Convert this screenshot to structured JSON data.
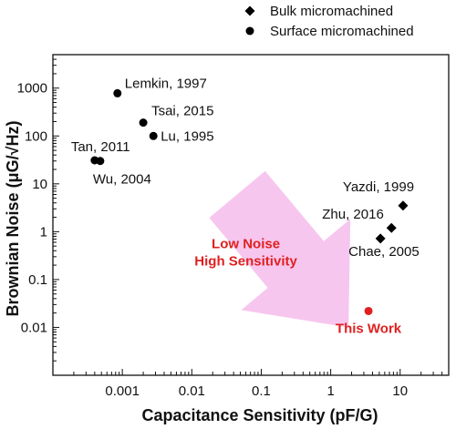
{
  "chart_data": {
    "type": "scatter",
    "title": "",
    "xlabel": "Capacitance Sensitivity  (pF/G)",
    "ylabel": "Brownian Noise (μG/√Hz)",
    "x_scale": "log",
    "y_scale": "log",
    "xlim": [
      0.0001,
      50
    ],
    "ylim": [
      0.001,
      5000
    ],
    "x_ticks": [
      "0.001",
      "0.01",
      "0.1",
      "1",
      "10"
    ],
    "x_tick_values": [
      0.001,
      0.01,
      0.1,
      1,
      10
    ],
    "y_ticks": [
      "1000",
      "100",
      "10",
      "1",
      "0.1",
      "0.01"
    ],
    "y_tick_values": [
      1000,
      100,
      10,
      1,
      0.1,
      0.01
    ],
    "grid": false,
    "legend_position": "top-right",
    "series": [
      {
        "name": "Bulk micromachined",
        "marker": "diamond",
        "color": "#000000",
        "points": [
          {
            "label": "Yazdi, 1999",
            "x": 11,
            "y": 3.5
          },
          {
            "label": "Zhu, 2016",
            "x": 7.5,
            "y": 1.2
          },
          {
            "label": "Chae, 2005",
            "x": 5.2,
            "y": 0.72
          }
        ]
      },
      {
        "name": "Surface micromachined",
        "marker": "circle",
        "color": "#000000",
        "points": [
          {
            "label": "Lemkin, 1997",
            "x": 0.00085,
            "y": 780
          },
          {
            "label": "Tsai, 2015",
            "x": 0.002,
            "y": 190
          },
          {
            "label": "Lu, 1995",
            "x": 0.0028,
            "y": 100
          },
          {
            "label": "Tan, 2011",
            "x": 0.0004,
            "y": 31
          },
          {
            "label": "Wu, 2004",
            "x": 0.00048,
            "y": 30
          }
        ]
      },
      {
        "name": "",
        "marker": "circle",
        "color": "#e02020",
        "points": [
          {
            "label": "This Work",
            "x": 3.5,
            "y": 0.022
          }
        ]
      }
    ],
    "annotations": [
      {
        "text_lines": [
          "Low Noise",
          "High Sensitivity"
        ],
        "color": "#e02020",
        "arrow_color": "#f7c6ee",
        "arrow_from": {
          "x": 0.045,
          "y": 6
        },
        "arrow_to": {
          "x": 1.8,
          "y": 0.01
        }
      }
    ]
  }
}
